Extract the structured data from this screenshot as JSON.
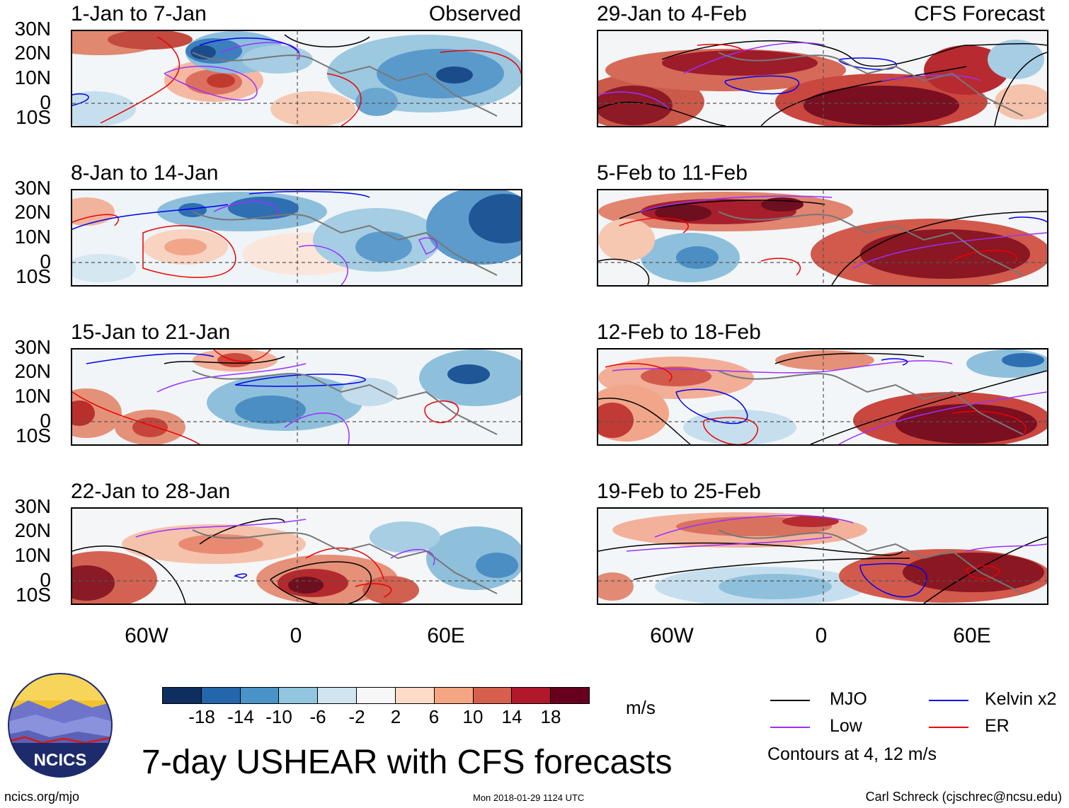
{
  "header": {
    "observed_tag": "Observed",
    "forecast_tag": "CFS Forecast"
  },
  "latitude_labels": [
    "30N",
    "20N",
    "10N",
    "0",
    "10S"
  ],
  "longitude_labels": [
    "60W",
    "0",
    "60E"
  ],
  "panels": {
    "observed": [
      {
        "title": "1-Jan to 7-Jan"
      },
      {
        "title": "8-Jan to 14-Jan"
      },
      {
        "title": "15-Jan to 21-Jan"
      },
      {
        "title": "22-Jan to 28-Jan"
      }
    ],
    "forecast": [
      {
        "title": "29-Jan to 4-Feb"
      },
      {
        "title": "5-Feb to 11-Feb"
      },
      {
        "title": "12-Feb to 18-Feb"
      },
      {
        "title": "19-Feb to 25-Feb"
      }
    ]
  },
  "colorbar": {
    "colors": [
      "#0d2e5e",
      "#2466ab",
      "#4993c6",
      "#92c5de",
      "#d1e5f0",
      "#f7f7f7",
      "#fddbc7",
      "#f4a582",
      "#d6604d",
      "#b2182b",
      "#67001f"
    ],
    "tick_labels": [
      "-18",
      "-14",
      "-10",
      "-6",
      "-2",
      "2",
      "6",
      "10",
      "14",
      "18"
    ],
    "units": "m/s"
  },
  "legend": {
    "items": [
      {
        "label": "MJO",
        "color": "#000000"
      },
      {
        "label": "Low",
        "color": "#9b30ff"
      },
      {
        "label": "Kelvin x2",
        "color": "#0000ee"
      },
      {
        "label": "ER",
        "color": "#ee0000"
      }
    ],
    "contours_note": "Contours at 4, 12 m/s"
  },
  "logo": {
    "text": "NCICS"
  },
  "title": "7-day USHEAR with CFS forecasts",
  "footer": {
    "url": "ncics.org/mjo",
    "timestamp": "Mon 2018-01-29 1124 UTC",
    "credit": "Carl Schreck (cjschrec@ncsu.edu)"
  }
}
